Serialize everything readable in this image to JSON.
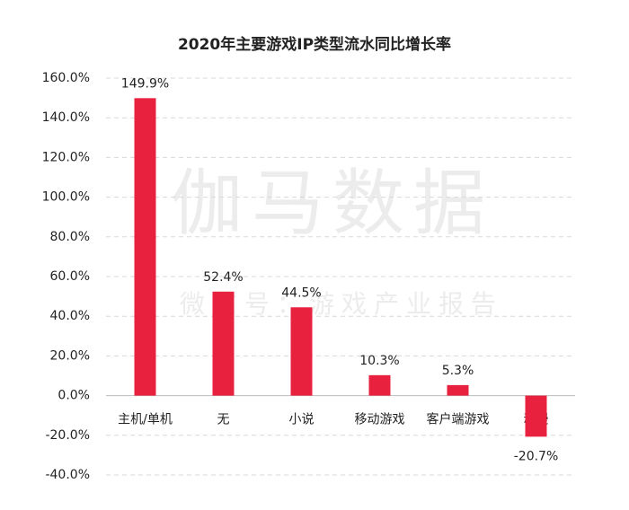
{
  "chart_data": {
    "type": "bar",
    "title": "2020年主要游戏IP类型流水同比增长率",
    "watermark": "伽马数据",
    "watermark_subtitle": "微信号：游戏产业报告",
    "categories": [
      "主机/单机",
      "无",
      "小说",
      "移动游戏",
      "客户端游戏",
      "动漫"
    ],
    "values": [
      149.9,
      52.4,
      44.5,
      10.3,
      5.3,
      -20.7
    ],
    "value_labels": [
      "149.9%",
      "52.4%",
      "44.5%",
      "10.3%",
      "5.3%",
      "-20.7%"
    ],
    "color": "#e8213f",
    "ylim": [
      -40,
      160
    ],
    "yticks": [
      {
        "value": -40,
        "label": "-40.0%"
      },
      {
        "value": -20,
        "label": "-20.0%"
      },
      {
        "value": 0,
        "label": "0.0%"
      },
      {
        "value": 20,
        "label": "20.0%"
      },
      {
        "value": 40,
        "label": "40.0%"
      },
      {
        "value": 60,
        "label": "60.0%"
      },
      {
        "value": 80,
        "label": "80.0%"
      },
      {
        "value": 100,
        "label": "100.0%"
      },
      {
        "value": 120,
        "label": "120.0%"
      },
      {
        "value": 140,
        "label": "140.0%"
      },
      {
        "value": 160,
        "label": "160.0%"
      }
    ],
    "grid": true
  }
}
